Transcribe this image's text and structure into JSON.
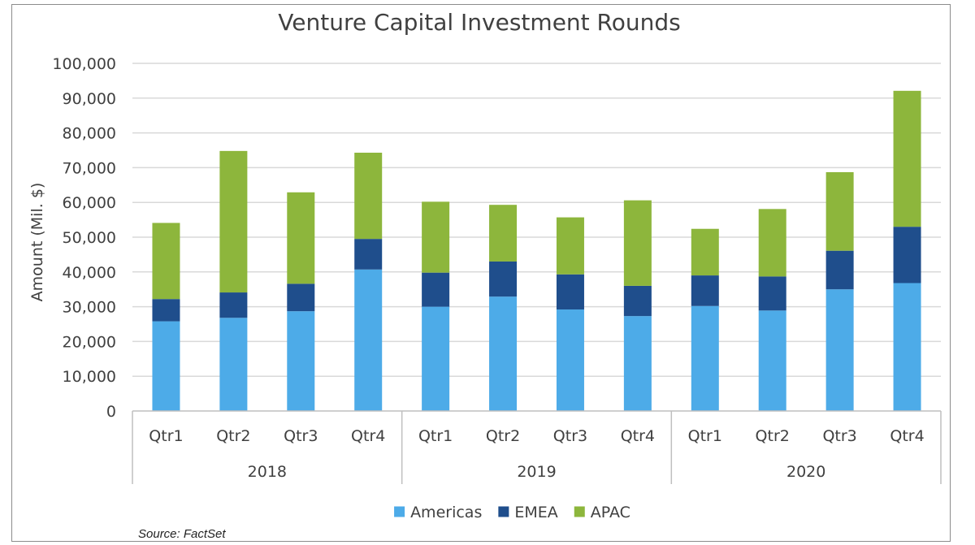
{
  "chart_data": {
    "type": "bar",
    "stacked": true,
    "title": "Venture Capital Investment Rounds",
    "ylabel": "Amount (Mil. $)",
    "xlabel": "",
    "ylim": [
      0,
      100000
    ],
    "yticks": [
      0,
      10000,
      20000,
      30000,
      40000,
      50000,
      60000,
      70000,
      80000,
      90000,
      100000
    ],
    "ytick_labels": [
      "0",
      "10,000",
      "20,000",
      "30,000",
      "40,000",
      "50,000",
      "60,000",
      "70,000",
      "80,000",
      "90,000",
      "100,000"
    ],
    "grid": true,
    "categories": [
      "Qtr1",
      "Qtr2",
      "Qtr3",
      "Qtr4",
      "Qtr1",
      "Qtr2",
      "Qtr3",
      "Qtr4",
      "Qtr1",
      "Qtr2",
      "Qtr3",
      "Qtr4"
    ],
    "groups": [
      {
        "label": "2018",
        "count": 4
      },
      {
        "label": "2019",
        "count": 4
      },
      {
        "label": "2020",
        "count": 4
      }
    ],
    "series": [
      {
        "name": "Americas",
        "color": "#4dabe8",
        "values": [
          25800,
          26800,
          28700,
          40700,
          30000,
          32900,
          29200,
          27300,
          30200,
          28900,
          35000,
          36800
        ]
      },
      {
        "name": "EMEA",
        "color": "#1f4e8c",
        "values": [
          6400,
          7300,
          7900,
          8800,
          9800,
          10100,
          10100,
          8700,
          8800,
          9800,
          11100,
          16200
        ]
      },
      {
        "name": "APAC",
        "color": "#8db63c",
        "values": [
          21900,
          40700,
          26300,
          24800,
          20400,
          16300,
          16400,
          24600,
          13400,
          19400,
          22600,
          39100
        ]
      }
    ],
    "legend_position": "bottom-center",
    "source": "Source: FactSet"
  }
}
